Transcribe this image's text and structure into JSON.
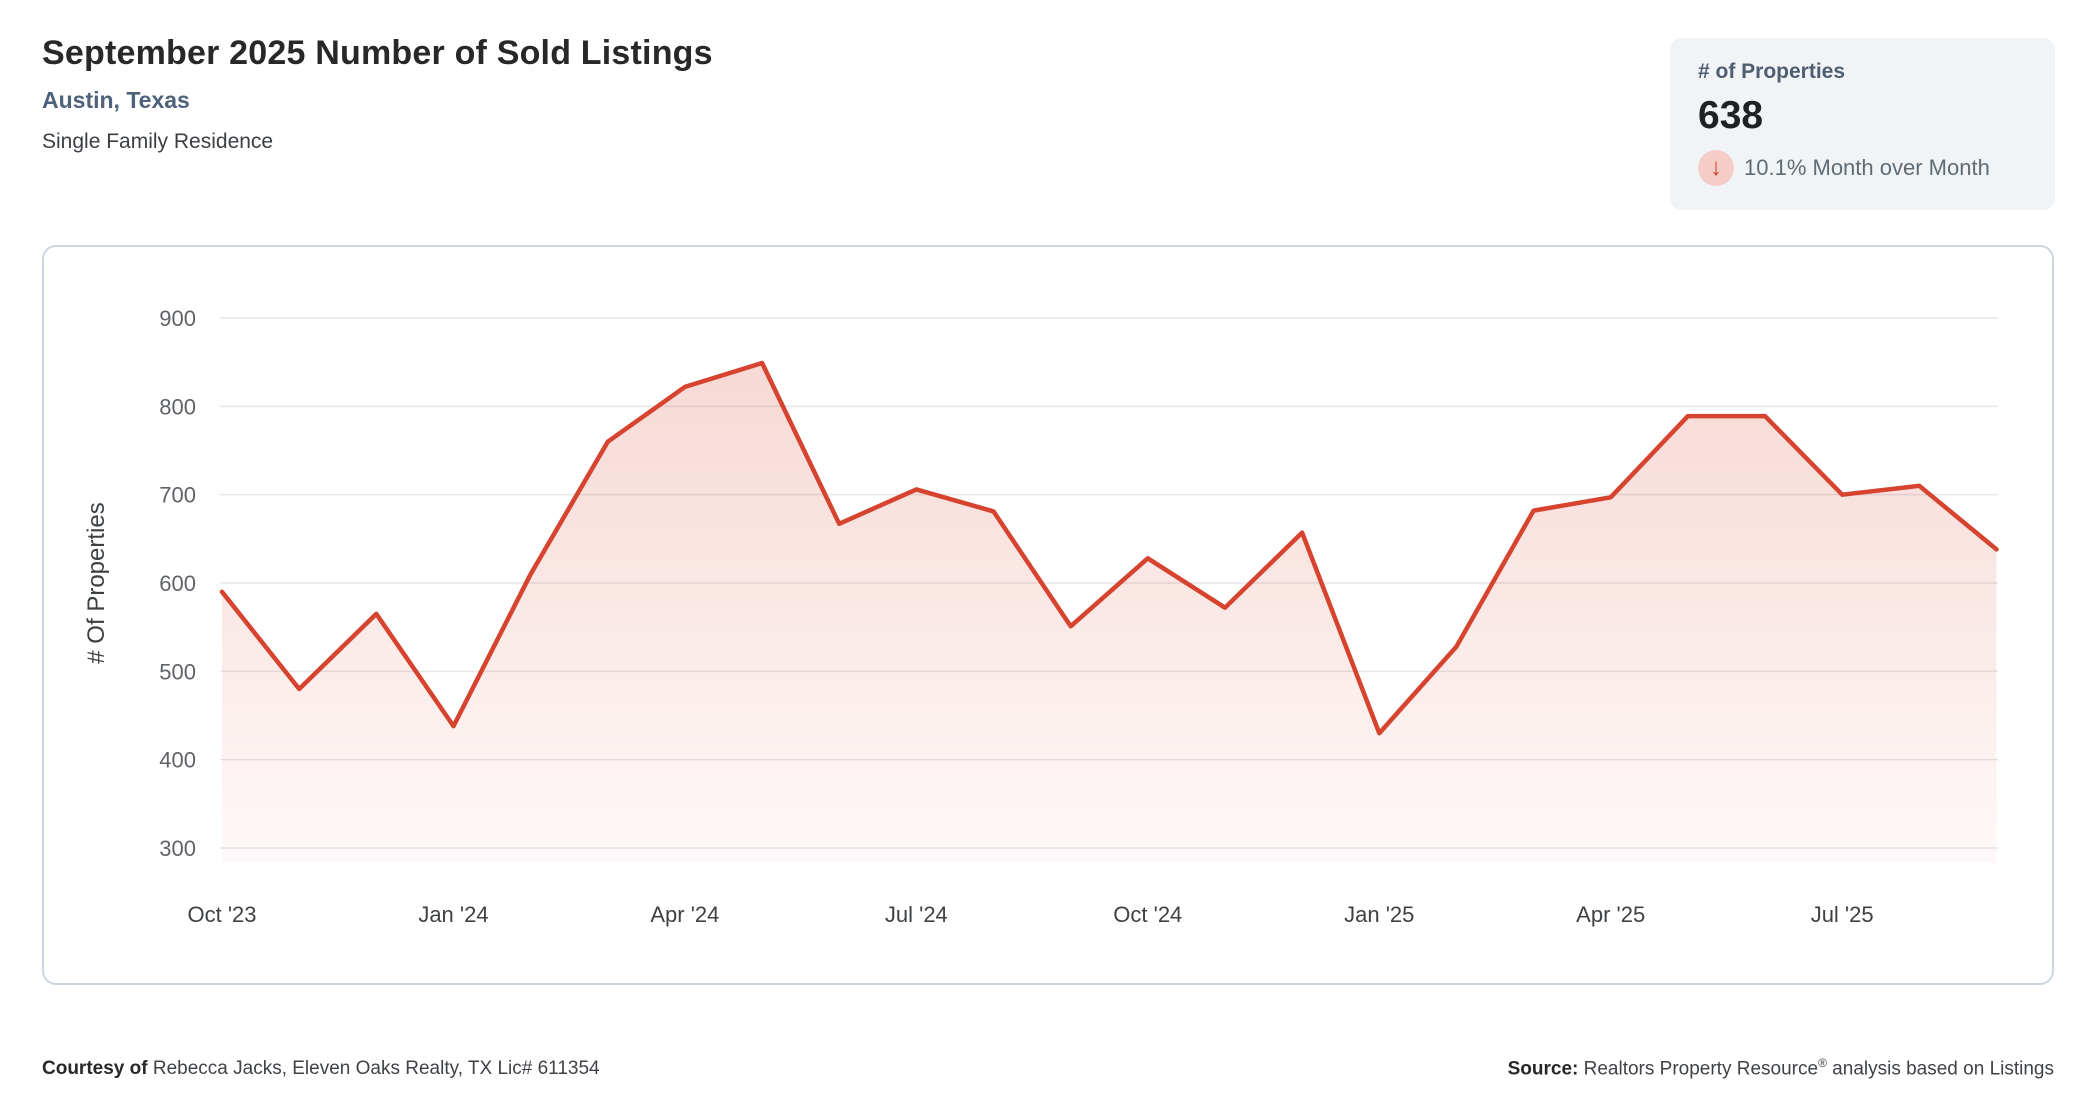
{
  "header": {
    "title": "September 2025 Number of Sold Listings",
    "subtitle": "Austin, Texas",
    "property_type": "Single Family Residence"
  },
  "stat_card": {
    "label": "# of Properties",
    "value": "638",
    "change_text": "10.1% Month over Month",
    "change_direction": "down"
  },
  "icons": {
    "down_arrow": "↓"
  },
  "colors": {
    "line": "#d6432e",
    "area_top": "rgba(214,67,46,0.22)",
    "area_bottom": "rgba(214,67,46,0.03)",
    "subtitle": "#4e637b",
    "badge_bg": "#f5cdc7",
    "badge_arrow": "#cf3b2a",
    "card_bg": "#f1f4f6",
    "chart_border": "#ccd7e1"
  },
  "chart_data": {
    "type": "area",
    "title": "September 2025 Number of Sold Listings",
    "x": [
      "Oct '23",
      "Nov '23",
      "Dec '23",
      "Jan '24",
      "Feb '24",
      "Mar '24",
      "Apr '24",
      "May '24",
      "Jun '24",
      "Jul '24",
      "Aug '24",
      "Sep '24",
      "Oct '24",
      "Nov '24",
      "Dec '24",
      "Jan '25",
      "Feb '25",
      "Mar '25",
      "Apr '25",
      "May '25",
      "Jun '25",
      "Jul '25",
      "Aug '25",
      "Sep '25"
    ],
    "values": [
      590,
      480,
      565,
      438,
      610,
      760,
      822,
      849,
      667,
      706,
      681,
      551,
      628,
      572,
      657,
      430,
      528,
      682,
      697,
      789,
      789,
      700,
      710,
      638
    ],
    "x_tick_labels": [
      "Oct '23",
      "Jan '24",
      "Apr '24",
      "Jul '24",
      "Oct '24",
      "Jan '25",
      "Apr '25",
      "Jul '25"
    ],
    "y_ticks": [
      300,
      400,
      500,
      600,
      700,
      800,
      900
    ],
    "ylim": [
      300,
      900
    ],
    "xlabel": "",
    "ylabel": "# Of Properties",
    "grid": true,
    "legend": false
  },
  "footer": {
    "courtesy_label": "Courtesy of",
    "courtesy_text": " Rebecca Jacks, Eleven Oaks Realty, TX Lic# 611354",
    "source_label": "Source:",
    "source_text": " Realtors Property Resource",
    "source_reg": "®",
    "source_suffix": " analysis based on Listings"
  }
}
